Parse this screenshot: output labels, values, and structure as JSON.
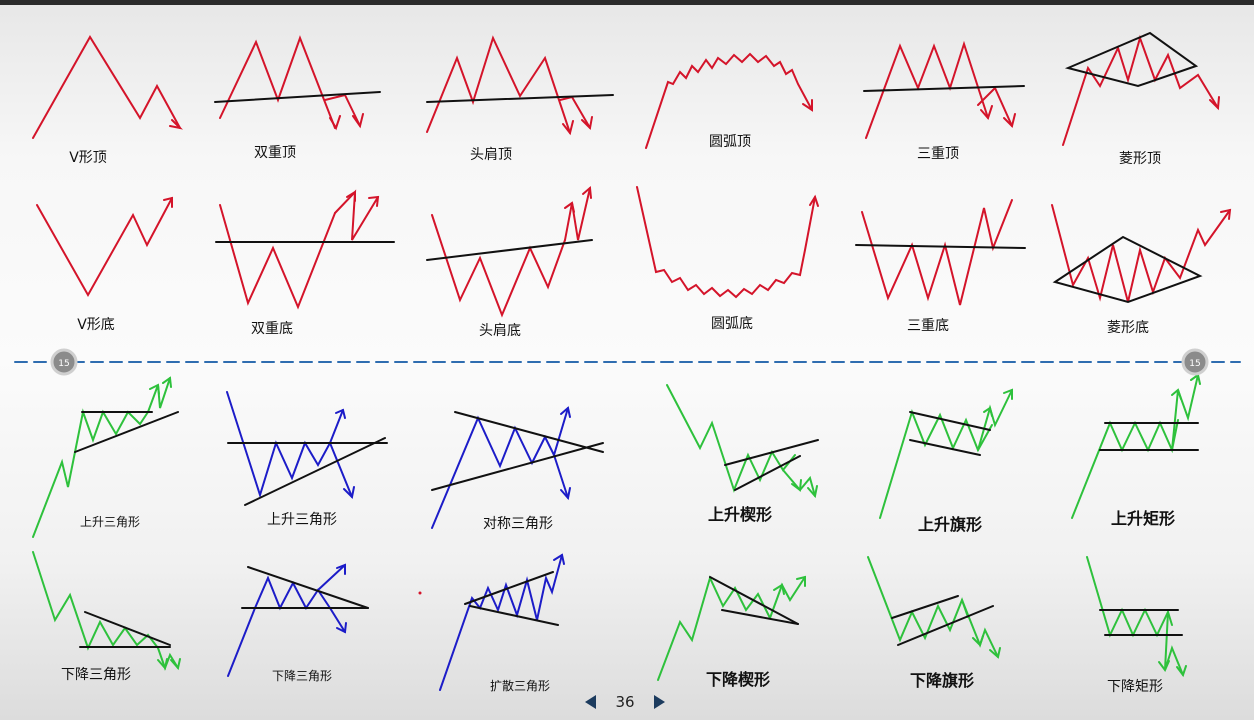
{
  "top_labels": [
    "V形顶",
    "双重顶",
    "头肩顶",
    "圆弧顶",
    "三重顶",
    "菱形顶"
  ],
  "bottom_labels": [
    "V形底",
    "双重底",
    "头肩底",
    "圆弧底",
    "三重底",
    "菱形底"
  ],
  "continuation_row1": [
    "上升三角形",
    "上升三角形",
    "对称三角形",
    "上升楔形",
    "上升旗形",
    "上升矩形"
  ],
  "continuation_row2": [
    "下降三角形",
    "下降三角形",
    "扩散三角形",
    "下降楔形",
    "下降旗形",
    "下降矩形"
  ],
  "divider_badge": "15",
  "page_number": "36",
  "colors": {
    "reversal": "#d4142a",
    "bullish": "#2ec13c",
    "neutral": "#1c1cc8",
    "trendline": "#111111",
    "divider": "#2f6db0"
  }
}
